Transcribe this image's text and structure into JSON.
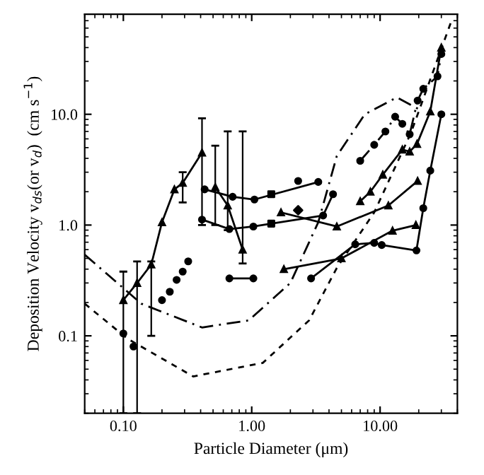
{
  "chart_data": {
    "type": "line",
    "xlabel": "Particle Diameter (μm)",
    "ylabel": "Deposition Velocity v$_{ds}$(or v$_{d}$)  (cm s$^{−1}$)",
    "log": "xy",
    "xlim": [
      0.05,
      40
    ],
    "ylim": [
      0.02,
      80
    ],
    "xticks": [
      {
        "value": 0.1,
        "label": "0.10"
      },
      {
        "value": 1,
        "label": "1.00"
      },
      {
        "value": 10,
        "label": "10.00"
      }
    ],
    "yticks": [
      {
        "value": 0.1,
        "label": "0.1"
      },
      {
        "value": 1,
        "label": "1.0"
      },
      {
        "value": 10,
        "label": "10.0"
      }
    ],
    "grid": false,
    "legend": false,
    "series": [
      {
        "color": "#000000",
        "marker": "none",
        "line_style": "dashed",
        "x": [
          0.05,
          0.138,
          0.41,
          0.95,
          2.0,
          3.3,
          4.6,
          7.6,
          13.5,
          20.7
        ],
        "values": [
          0.54,
          0.195,
          0.119,
          0.138,
          0.3,
          1.06,
          4.2,
          10,
          14.2,
          10.9
        ]
      },
      {
        "color": "#000000",
        "marker": "none",
        "line_style": "dotted",
        "x": [
          0.05,
          0.108,
          0.35,
          1.22,
          2.8,
          4.6,
          9.0,
          17.4,
          36
        ],
        "values": [
          0.195,
          0.094,
          0.043,
          0.057,
          0.138,
          0.41,
          1.3,
          6.8,
          70
        ]
      },
      {
        "color": "#000000",
        "marker": "triangle",
        "line_style": "solid",
        "x": [
          0.1,
          0.128,
          0.165,
          0.2,
          0.25,
          0.29,
          0.41
        ],
        "values": [
          0.21,
          0.3,
          0.44,
          1.06,
          2.1,
          2.4,
          4.5
        ],
        "errors": [
          [
            0.02,
            0.38
          ],
          [
            0.02,
            0.47
          ],
          [
            0.1,
            0.47
          ],
          null,
          null,
          [
            1.6,
            3.0
          ],
          [
            1.0,
            9.2
          ]
        ]
      },
      {
        "color": "#000000",
        "marker": "triangle",
        "line_style": "solid",
        "x": [
          0.52,
          0.65,
          0.85
        ],
        "values": [
          2.2,
          1.5,
          0.6
        ],
        "errors": [
          [
            1.0,
            5.2
          ],
          [
            0.9,
            7.0
          ],
          [
            0.45,
            7.0
          ]
        ]
      },
      {
        "type": "scatter",
        "color": "#000000",
        "marker": "circle",
        "x": [
          0.1,
          0.12,
          0.2,
          0.23,
          0.26,
          0.29,
          0.32
        ],
        "values": [
          0.105,
          0.08,
          0.21,
          0.25,
          0.32,
          0.38,
          0.47
        ]
      },
      {
        "color": "#000000",
        "marker": "circle",
        "line_style": "solid",
        "x": [
          0.67,
          1.03
        ],
        "values": [
          0.33,
          0.33
        ]
      },
      {
        "color": "#000000",
        "marker": "circle",
        "line_style": "solid",
        "x": [
          2.9,
          6.4,
          9.0,
          10.3,
          19.2,
          21.7,
          24.6,
          30
        ],
        "values": [
          0.33,
          0.67,
          0.69,
          0.66,
          0.59,
          1.42,
          3.1,
          10
        ]
      },
      {
        "color": "#000000",
        "marker": "triangle",
        "line_style": "solid",
        "x": [
          1.78,
          5.0,
          12.5,
          19
        ],
        "values": [
          0.4,
          0.5,
          0.89,
          1.0
        ]
      },
      {
        "color": "#000000",
        "marker": "triangle",
        "line_style": "solid",
        "x": [
          1.69,
          4.6,
          11.6,
          19.6
        ],
        "values": [
          1.3,
          0.97,
          1.5,
          2.5
        ]
      },
      {
        "color": "#000000",
        "marker": "triangle",
        "line_style": "solid",
        "x": [
          7.0,
          8.4,
          10.5,
          14.9,
          17,
          19.4,
          24.6,
          30
        ],
        "values": [
          1.64,
          2.0,
          2.85,
          4.8,
          4.6,
          5.4,
          10.6,
          40
        ]
      },
      {
        "color": "#000000",
        "marker": "circle",
        "line_style": "dashed",
        "x": [
          7.0,
          9.0,
          11.0,
          13.1,
          14.9,
          17,
          19.6,
          21.7,
          28,
          30
        ],
        "values": [
          3.8,
          5.3,
          7.0,
          9.5,
          8.2,
          6.6,
          13.3,
          17,
          22,
          35
        ]
      },
      {
        "color": "#000000",
        "marker": "circle",
        "line_style": "solid",
        "x": [
          0.41,
          0.67,
          1.03,
          3.6,
          4.3
        ],
        "values": [
          1.12,
          0.92,
          0.97,
          1.22,
          1.9
        ]
      },
      {
        "color": "#000000",
        "marker": "circle",
        "line_style": "solid",
        "x": [
          0.43,
          0.71,
          1.05,
          3.3
        ],
        "values": [
          2.1,
          1.8,
          1.7,
          2.45
        ]
      },
      {
        "type": "scatter",
        "color": "#000000",
        "marker": "square",
        "x": [
          1.42,
          1.42
        ],
        "values": [
          1.9,
          1.03
        ]
      },
      {
        "type": "scatter",
        "color": "#000000",
        "marker": "diamond",
        "x": [
          2.3
        ],
        "values": [
          1.36
        ]
      },
      {
        "type": "scatter",
        "color": "#000000",
        "marker": "circle",
        "x": [
          2.3
        ],
        "values": [
          2.5
        ]
      }
    ]
  }
}
